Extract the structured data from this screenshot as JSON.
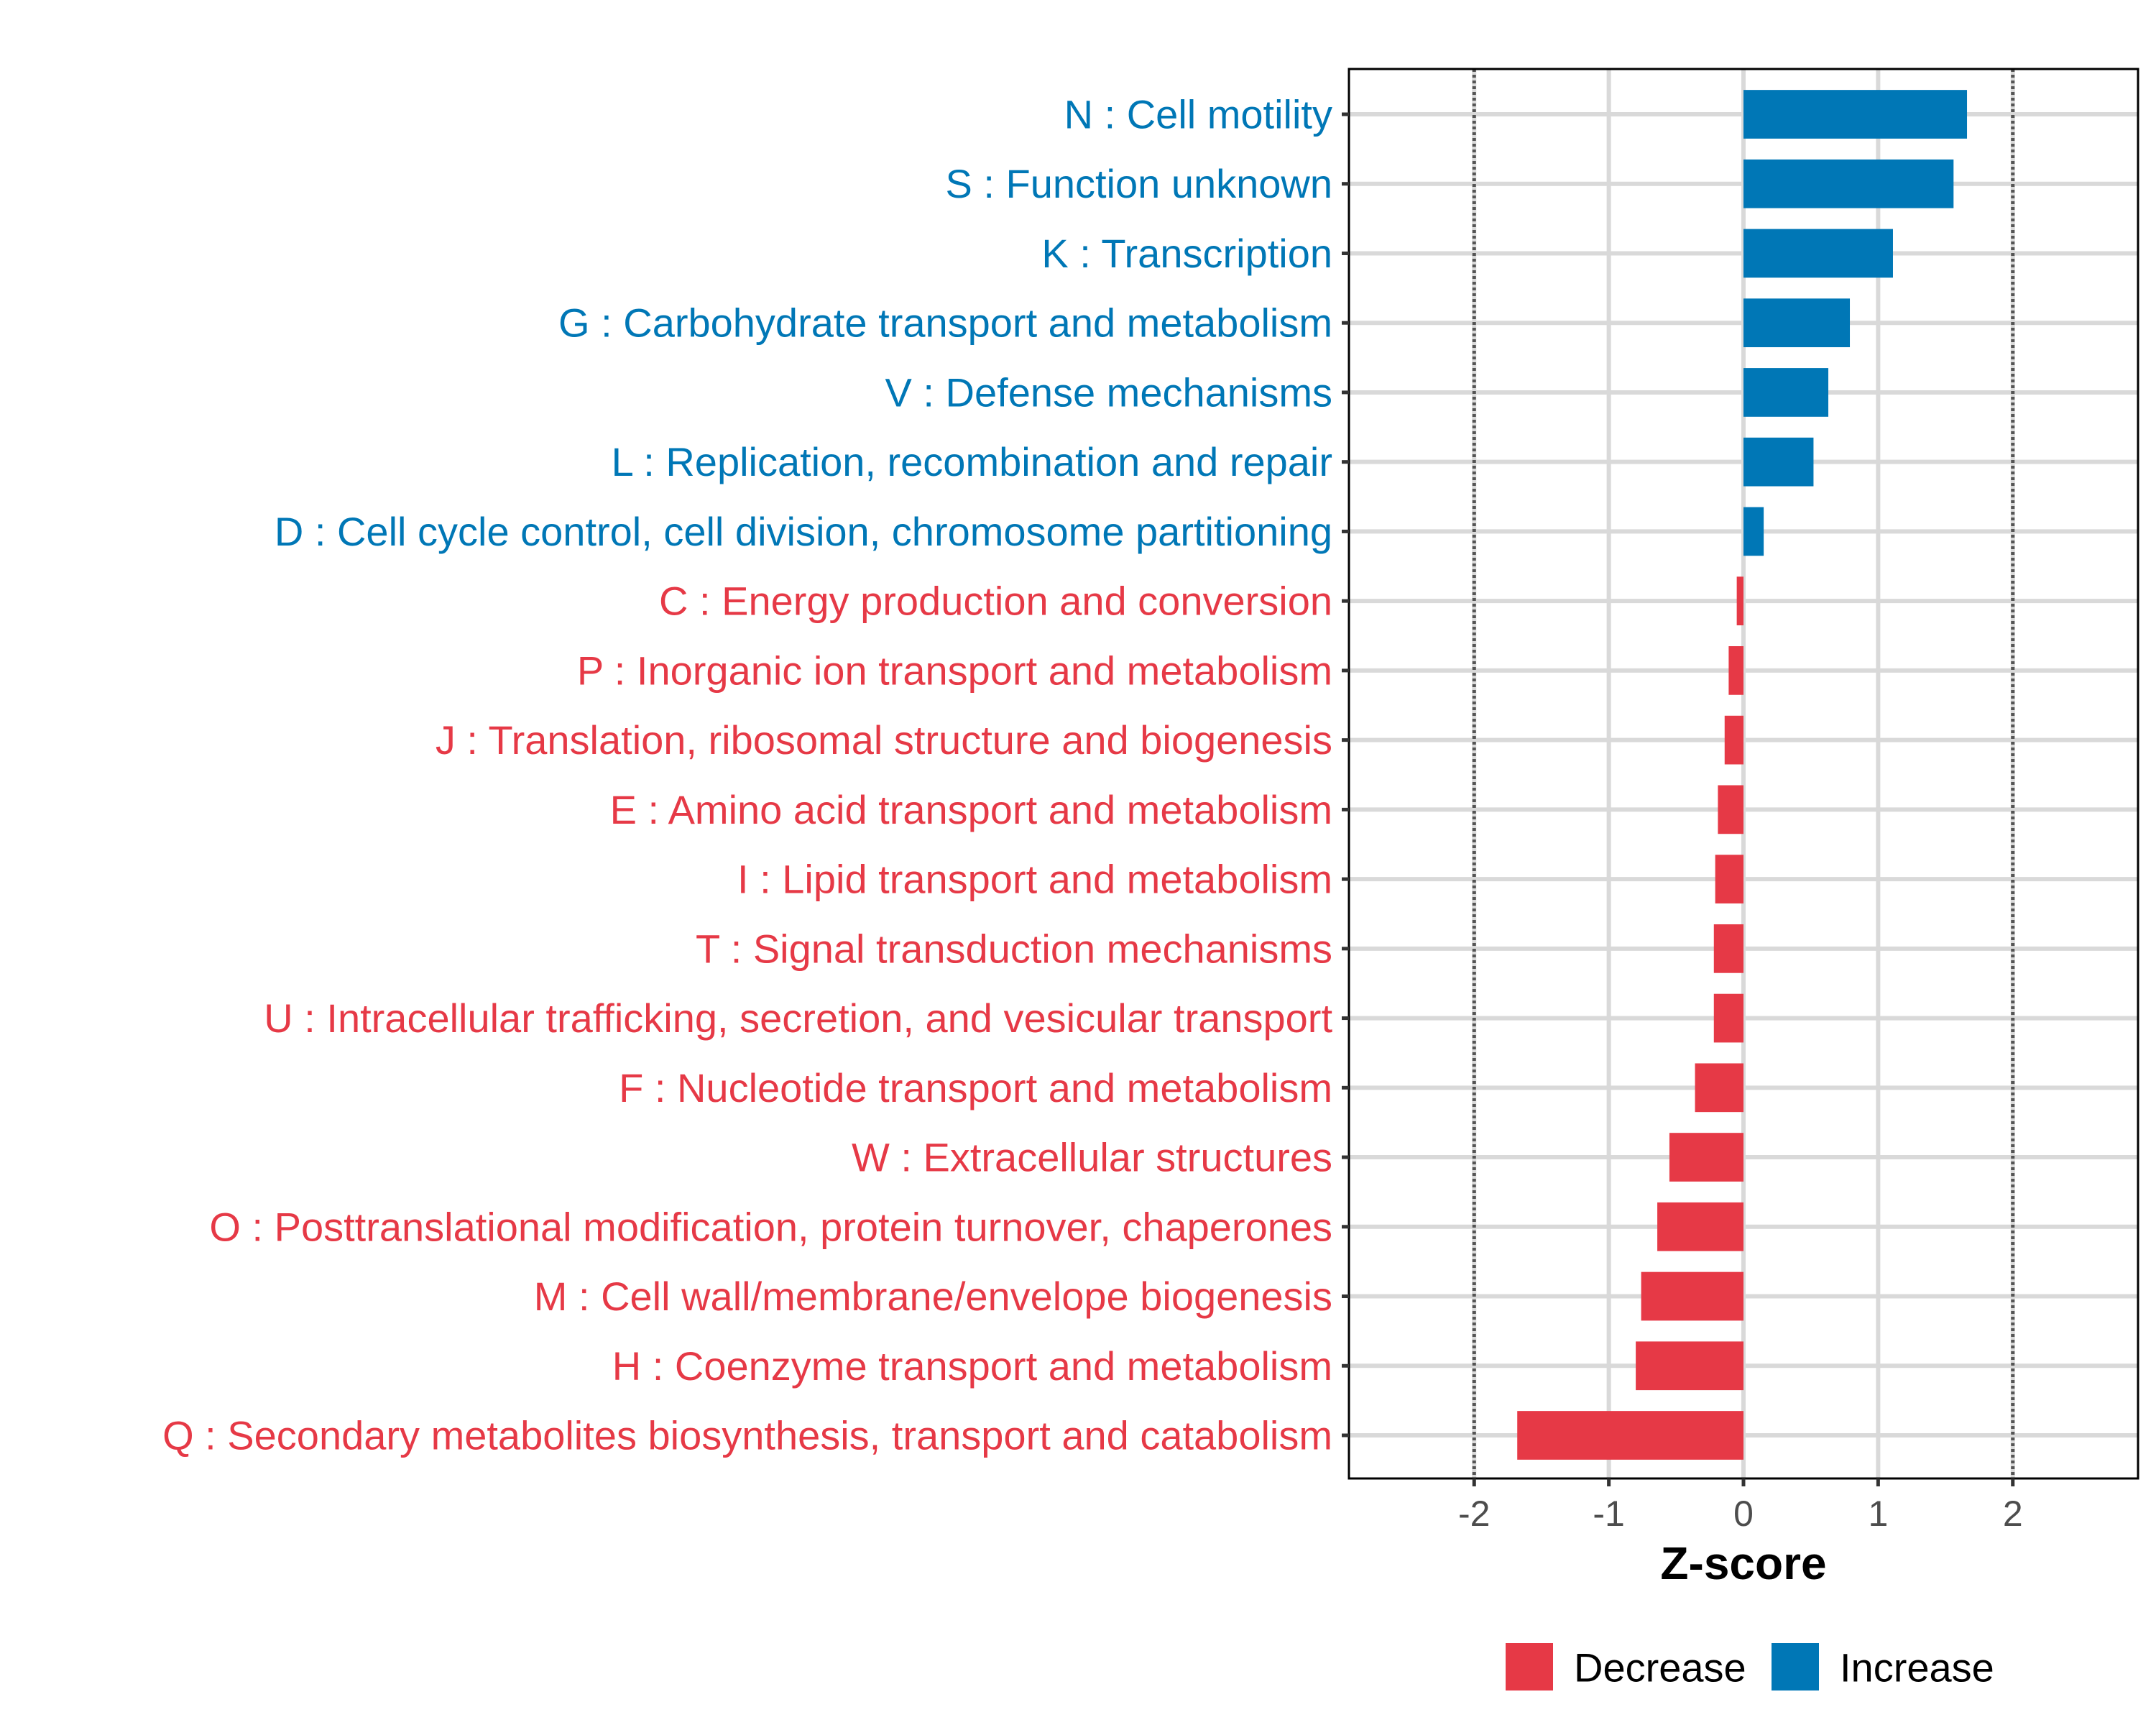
{
  "chart_data": {
    "type": "bar",
    "orientation": "horizontal",
    "title": "",
    "xlabel": "Z-score",
    "ylabel": "",
    "xlim": [
      -2.93,
      2.93
    ],
    "xticks": [
      -2,
      -1,
      0,
      1,
      2
    ],
    "xtick_labels": [
      "-2",
      "-1",
      "0",
      "1",
      "2"
    ],
    "reference_lines": [
      -2,
      2
    ],
    "grid": true,
    "legend_position": "bottom",
    "colors": {
      "Decrease": "#E63946",
      "Increase": "#0077B6"
    },
    "categories": [
      "N : Cell motility",
      "S : Function unknown",
      "K : Transcription",
      "G : Carbohydrate transport and metabolism",
      "V : Defense mechanisms",
      "L : Replication, recombination and repair",
      "D : Cell cycle control, cell division, chromosome partitioning",
      "C : Energy production and conversion",
      "P : Inorganic ion transport and metabolism",
      "J : Translation, ribosomal structure and biogenesis",
      "E : Amino acid transport and metabolism",
      "I : Lipid transport and metabolism",
      "T : Signal transduction mechanisms",
      "U : Intracellular trafficking, secretion, and vesicular transport",
      "F : Nucleotide transport and metabolism",
      "W : Extracellular structures",
      "O : Posttranslational modification, protein turnover, chaperones",
      "M : Cell wall/membrane/envelope biogenesis",
      "H : Coenzyme transport and metabolism",
      "Q : Secondary metabolites biosynthesis, transport and catabolism"
    ],
    "values": [
      1.66,
      1.56,
      1.11,
      0.79,
      0.63,
      0.52,
      0.15,
      -0.05,
      -0.11,
      -0.14,
      -0.19,
      -0.21,
      -0.22,
      -0.22,
      -0.36,
      -0.55,
      -0.64,
      -0.76,
      -0.8,
      -1.68
    ],
    "groups": [
      "Increase",
      "Increase",
      "Increase",
      "Increase",
      "Increase",
      "Increase",
      "Increase",
      "Decrease",
      "Decrease",
      "Decrease",
      "Decrease",
      "Decrease",
      "Decrease",
      "Decrease",
      "Decrease",
      "Decrease",
      "Decrease",
      "Decrease",
      "Decrease",
      "Decrease"
    ],
    "legend": [
      {
        "label": "Decrease",
        "color": "#E63946"
      },
      {
        "label": "Increase",
        "color": "#0077B6"
      }
    ]
  }
}
